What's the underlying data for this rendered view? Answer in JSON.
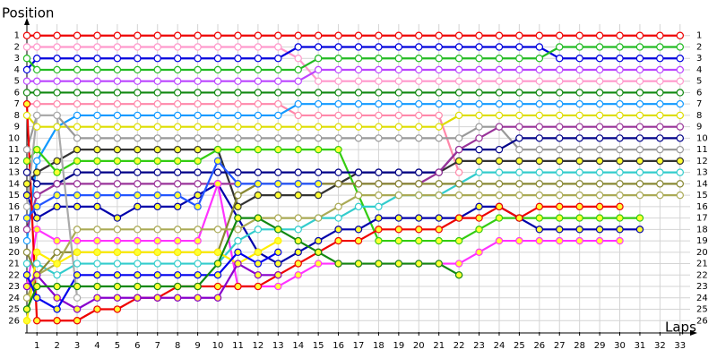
{
  "chart_data": {
    "type": "line",
    "y_label": "Position",
    "x_label": "Laps",
    "x": [
      0.5,
      1,
      2,
      3,
      4,
      5,
      6,
      7,
      8,
      9,
      10,
      11,
      12,
      13,
      14,
      15,
      16,
      17,
      18,
      19,
      20,
      21,
      22,
      23,
      24,
      25,
      26,
      27,
      28,
      29,
      30,
      31,
      32,
      33
    ],
    "xlim": [
      0.5,
      33.5
    ],
    "xticks": [
      1,
      2,
      3,
      4,
      5,
      6,
      7,
      8,
      9,
      10,
      11,
      12,
      13,
      14,
      15,
      16,
      17,
      18,
      19,
      20,
      21,
      22,
      23,
      24,
      25,
      26,
      27,
      28,
      29,
      30,
      31,
      32,
      33
    ],
    "ylim": [
      0,
      27
    ],
    "y_inverted": true,
    "yticks": [
      1,
      2,
      3,
      4,
      5,
      6,
      7,
      8,
      9,
      10,
      11,
      12,
      13,
      14,
      15,
      16,
      17,
      18,
      19,
      20,
      21,
      22,
      23,
      24,
      25,
      26
    ],
    "grid": true,
    "grid_color": "#d4d4d4",
    "series": [
      {
        "color": "#ee0000",
        "fill": "#ffffff",
        "values": [
          1,
          1,
          1,
          1,
          1,
          1,
          1,
          1,
          1,
          1,
          1,
          1,
          1,
          1,
          1,
          1,
          1,
          1,
          1,
          1,
          1,
          1,
          1,
          1,
          1,
          1,
          1,
          1,
          1,
          1,
          1,
          1,
          1,
          1
        ]
      },
      {
        "color": "#ff99cc",
        "fill": "#ffffff",
        "values": [
          2,
          2,
          2,
          2,
          2,
          2,
          2,
          2,
          2,
          2,
          2,
          2,
          2,
          2,
          3,
          5,
          5,
          5,
          5,
          5,
          5,
          5,
          5,
          5,
          5,
          5,
          5,
          5,
          5,
          5,
          5,
          5,
          5,
          5
        ]
      },
      {
        "color": "#0000dd",
        "fill": "#ffffff",
        "values": [
          4,
          3,
          3,
          3,
          3,
          3,
          3,
          3,
          3,
          3,
          3,
          3,
          3,
          3,
          2,
          2,
          2,
          2,
          2,
          2,
          2,
          2,
          2,
          2,
          2,
          2,
          2,
          3,
          3,
          3,
          3,
          3,
          3,
          3
        ]
      },
      {
        "color": "#22bb22",
        "fill": "#ffffff",
        "values": [
          3,
          4,
          4,
          4,
          4,
          4,
          4,
          4,
          4,
          4,
          4,
          4,
          4,
          4,
          4,
          3,
          3,
          3,
          3,
          3,
          3,
          3,
          3,
          3,
          3,
          3,
          3,
          2,
          2,
          2,
          2,
          2,
          2,
          2
        ]
      },
      {
        "color": "#bb44ff",
        "fill": "#ffffff",
        "values": [
          5,
          5,
          5,
          5,
          5,
          5,
          5,
          5,
          5,
          5,
          5,
          5,
          5,
          5,
          5,
          4,
          4,
          4,
          4,
          4,
          4,
          4,
          4,
          4,
          4,
          4,
          4,
          4,
          4,
          4,
          4,
          4,
          4,
          4
        ]
      },
      {
        "color": "#118811",
        "fill": "#ffffff",
        "values": [
          6,
          6,
          6,
          6,
          6,
          6,
          6,
          6,
          6,
          6,
          6,
          6,
          6,
          6,
          6,
          6,
          6,
          6,
          6,
          6,
          6,
          6,
          6,
          6,
          6,
          6,
          6,
          6,
          6,
          6,
          6,
          6,
          6,
          6
        ]
      },
      {
        "color": "#ff88aa",
        "fill": "#ffffff",
        "values": [
          7,
          7,
          7,
          7,
          7,
          7,
          7,
          7,
          7,
          7,
          7,
          7,
          7,
          7,
          8,
          8,
          8,
          8,
          8,
          8,
          8,
          8,
          13,
          null,
          null,
          null,
          null,
          null,
          null,
          null,
          null,
          null,
          null,
          null
        ]
      },
      {
        "color": "#1199ff",
        "fill": "#ffffff",
        "values": [
          19,
          12,
          9,
          8,
          8,
          8,
          8,
          8,
          8,
          8,
          8,
          8,
          8,
          8,
          7,
          7,
          7,
          7,
          7,
          7,
          7,
          7,
          7,
          7,
          7,
          7,
          7,
          7,
          7,
          7,
          7,
          7,
          7,
          7
        ]
      },
      {
        "color": "#dddd00",
        "fill": "#ffffff",
        "values": [
          8,
          9,
          9,
          9,
          9,
          9,
          9,
          9,
          9,
          9,
          9,
          9,
          9,
          9,
          9,
          9,
          9,
          9,
          9,
          9,
          9,
          9,
          8,
          8,
          8,
          8,
          8,
          8,
          8,
          8,
          8,
          8,
          8,
          8
        ]
      },
      {
        "color": "#999999",
        "fill": "#ffffff",
        "values": [
          11,
          8,
          8,
          10,
          10,
          10,
          10,
          10,
          10,
          10,
          10,
          10,
          10,
          10,
          10,
          10,
          10,
          10,
          10,
          10,
          10,
          10,
          10,
          9,
          9,
          11,
          11,
          11,
          11,
          11,
          11,
          11,
          11,
          11
        ]
      },
      {
        "color": "#333333",
        "fill": "#ffff33",
        "values": [
          14,
          13,
          12,
          11,
          11,
          11,
          11,
          11,
          11,
          11,
          11,
          16,
          15,
          15,
          15,
          15,
          14,
          13,
          13,
          13,
          13,
          13,
          12,
          12,
          12,
          12,
          12,
          12,
          12,
          12,
          12,
          12,
          12,
          12
        ]
      },
      {
        "color": "#33cc11",
        "fill": "#ffff33",
        "values": [
          12,
          11,
          13,
          12,
          12,
          12,
          12,
          12,
          12,
          12,
          11,
          11,
          11,
          11,
          11,
          11,
          11,
          15,
          19,
          19,
          19,
          19,
          19,
          18,
          17,
          17,
          17,
          17,
          17,
          17,
          17,
          17,
          null,
          null
        ]
      },
      {
        "color": "#0000aa",
        "fill": "#ffff33",
        "values": [
          15,
          17,
          16,
          16,
          16,
          17,
          16,
          16,
          16,
          15,
          14,
          17,
          20,
          21,
          20,
          19,
          18,
          18,
          17,
          17,
          17,
          17,
          17,
          16,
          16,
          17,
          18,
          18,
          18,
          18,
          18,
          18,
          null,
          null
        ]
      },
      {
        "color": "#000088",
        "fill": "#ffffff",
        "values": [
          13,
          14,
          14,
          13,
          13,
          13,
          13,
          13,
          13,
          13,
          13,
          13,
          13,
          13,
          13,
          13,
          13,
          13,
          13,
          13,
          13,
          13,
          11,
          11,
          11,
          10,
          10,
          10,
          10,
          10,
          10,
          10,
          10,
          10
        ]
      },
      {
        "color": "#993399",
        "fill": "#ffffff",
        "values": [
          18,
          15,
          14,
          14,
          14,
          14,
          14,
          14,
          14,
          14,
          14,
          14,
          14,
          14,
          14,
          14,
          14,
          14,
          14,
          14,
          14,
          13,
          11,
          10,
          9,
          9,
          9,
          9,
          9,
          9,
          9,
          9,
          9,
          9
        ]
      },
      {
        "color": "#ff33ff",
        "fill": "#ffff33",
        "values": [
          23,
          18,
          19,
          19,
          19,
          19,
          19,
          19,
          19,
          19,
          14,
          23,
          23,
          23,
          22,
          21,
          21,
          21,
          21,
          21,
          21,
          21,
          21,
          20,
          19,
          19,
          19,
          19,
          19,
          19,
          19,
          null,
          null,
          null
        ]
      },
      {
        "color": "#ee0000",
        "fill": "#ffff33",
        "values": [
          7,
          26,
          26,
          26,
          25,
          25,
          24,
          24,
          23,
          23,
          23,
          23,
          23,
          22,
          21,
          20,
          19,
          19,
          18,
          18,
          18,
          18,
          17,
          17,
          16,
          17,
          16,
          16,
          16,
          16,
          16,
          null,
          null,
          null
        ]
      },
      {
        "color": "#33cccc",
        "fill": "#ffffff",
        "values": [
          21,
          21,
          22,
          21,
          21,
          21,
          21,
          21,
          21,
          21,
          21,
          19,
          18,
          18,
          18,
          17,
          17,
          16,
          16,
          15,
          15,
          15,
          14,
          13,
          13,
          13,
          13,
          13,
          13,
          13,
          13,
          13,
          13,
          13
        ]
      },
      {
        "color": "#888833",
        "fill": "#ffffff",
        "values": [
          20,
          22,
          20,
          20,
          20,
          20,
          20,
          20,
          20,
          20,
          20,
          15,
          14,
          14,
          14,
          14,
          14,
          14,
          14,
          14,
          14,
          14,
          14,
          14,
          14,
          14,
          14,
          14,
          14,
          14,
          14,
          14,
          14,
          14
        ]
      },
      {
        "color": "#aaaa55",
        "fill": "#ffffff",
        "values": [
          24,
          22,
          21,
          18,
          18,
          18,
          18,
          18,
          18,
          18,
          18,
          18,
          17,
          17,
          17,
          17,
          16,
          15,
          15,
          15,
          15,
          15,
          15,
          15,
          15,
          15,
          15,
          15,
          15,
          15,
          15,
          15,
          15,
          15
        ]
      },
      {
        "color": "#2255ff",
        "fill": "#ffff33",
        "values": [
          17,
          16,
          15,
          15,
          15,
          15,
          15,
          15,
          15,
          16,
          12,
          14,
          14,
          14,
          14,
          14,
          null,
          null,
          null,
          null,
          null,
          null,
          null,
          null,
          null,
          null,
          null,
          null,
          null,
          null,
          null,
          null,
          null,
          null
        ]
      },
      {
        "color": "#ffee00",
        "fill": "#ffff33",
        "values": [
          26,
          20,
          21,
          20,
          20,
          20,
          20,
          20,
          20,
          20,
          20,
          21,
          20,
          19,
          null,
          null,
          null,
          null,
          null,
          null,
          null,
          null,
          null,
          null,
          null,
          null,
          null,
          null,
          null,
          null,
          null,
          null,
          null,
          null
        ]
      },
      {
        "color": "#8800cc",
        "fill": "#ffff33",
        "values": [
          23,
          22,
          24,
          25,
          24,
          24,
          24,
          24,
          24,
          24,
          24,
          21,
          22,
          22,
          null,
          null,
          null,
          null,
          null,
          null,
          null,
          null,
          null,
          null,
          null,
          null,
          null,
          null,
          null,
          null,
          null,
          null,
          null,
          null
        ]
      },
      {
        "color": "#0000ee",
        "fill": "#ffff33",
        "values": [
          22,
          24,
          25,
          22,
          22,
          22,
          22,
          22,
          22,
          22,
          22,
          20,
          21,
          20,
          null,
          null,
          null,
          null,
          null,
          null,
          null,
          null,
          null,
          null,
          null,
          null,
          null,
          null,
          null,
          null,
          null,
          null,
          null,
          null
        ]
      },
      {
        "color": "#118811",
        "fill": "#ffff33",
        "values": [
          25,
          23,
          23,
          23,
          23,
          23,
          23,
          23,
          23,
          23,
          21,
          17,
          17,
          18,
          19,
          20,
          21,
          21,
          21,
          21,
          21,
          21,
          22,
          null,
          null,
          null,
          null,
          null,
          null,
          null,
          null,
          null,
          null,
          null
        ]
      },
      {
        "color": "#aaaaaa",
        "fill": "#ffffff",
        "values": [
          16,
          8,
          8,
          24,
          null,
          null,
          null,
          null,
          null,
          null,
          null,
          null,
          null,
          null,
          null,
          null,
          null,
          null,
          null,
          null,
          null,
          null,
          null,
          null,
          null,
          null,
          null,
          null,
          null,
          null,
          null,
          null,
          null,
          null
        ]
      }
    ]
  }
}
